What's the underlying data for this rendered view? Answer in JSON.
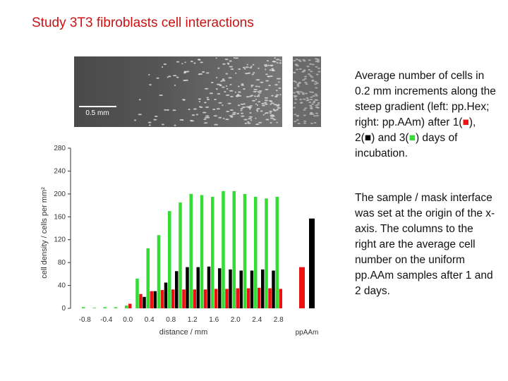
{
  "title": "Study 3T3 fibroblasts cell interactions",
  "image": {
    "scale_label": "0.5 mm"
  },
  "paragraph1": [
    "Average number of cells in 0.2 mm increments along the steep gradient (left: pp.Hex; right: pp.AAm) after 1(",
    "■",
    "), 2(",
    "■",
    ") and 3(",
    "■",
    ") days of incubation."
  ],
  "paragraph2": "The sample / mask interface was set at the origin of the x-axis. The columns to the right are the average cell number on the uniform pp.AAm samples after 1 and 2 days.",
  "chart_data": {
    "type": "bar",
    "xlabel": "distance / mm",
    "ylabel": "cell density / cells per mm²",
    "x": [
      -0.8,
      -0.6,
      -0.4,
      -0.2,
      0.0,
      0.2,
      0.4,
      0.6,
      0.8,
      1.0,
      1.2,
      1.4,
      1.6,
      1.8,
      2.0,
      2.2,
      2.4,
      2.6,
      2.8
    ],
    "series": [
      {
        "name": "1",
        "color": "#ee1111",
        "values": [
          null,
          null,
          null,
          null,
          8,
          25,
          30,
          32,
          33,
          33,
          33,
          33,
          34,
          34,
          35,
          35,
          36,
          35,
          34
        ]
      },
      {
        "name": "2",
        "color": "#000000",
        "values": [
          null,
          null,
          null,
          null,
          null,
          20,
          30,
          45,
          65,
          72,
          72,
          73,
          70,
          68,
          66,
          66,
          68,
          66,
          null
        ]
      },
      {
        "name": "3",
        "color": "#33dd33",
        "values": [
          2,
          1,
          2,
          2,
          5,
          52,
          105,
          128,
          170,
          185,
          200,
          198,
          195,
          205,
          205,
          200,
          195,
          192,
          195
        ]
      }
    ],
    "uniform": {
      "label": "ppAAm",
      "values": [
        72,
        157
      ]
    },
    "xlim": [
      -1.0,
      3.0
    ],
    "ylim": [
      0,
      280
    ],
    "xticks": [
      -0.8,
      -0.4,
      {
        "value": 0,
        "label": "0.0"
      },
      0.4,
      0.8,
      1.2,
      1.6,
      {
        "value": 2,
        "label": "2.0"
      },
      2.4,
      2.8
    ],
    "yticks": [
      0,
      40,
      80,
      120,
      160,
      200,
      240,
      280
    ]
  }
}
